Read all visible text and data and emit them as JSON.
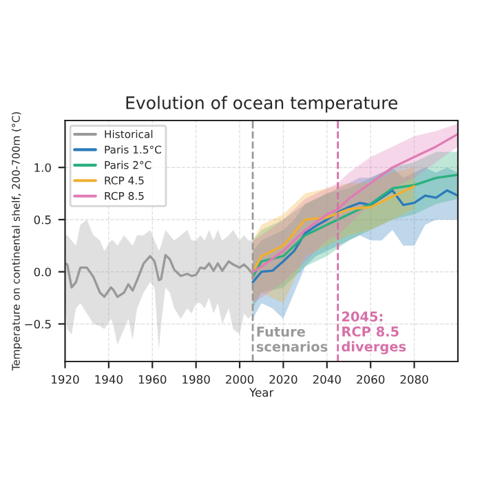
{
  "chart_data": {
    "type": "line",
    "title": "Evolution of ocean temperature",
    "xlabel": "Year",
    "ylabel": "Temperature on continental shelf, 200-700m (°C)",
    "xlim": [
      1920,
      2100
    ],
    "ylim": [
      -0.86,
      1.45
    ],
    "xticks": [
      1920,
      1940,
      1960,
      1980,
      2000,
      2020,
      2040,
      2060,
      2080
    ],
    "yticks": [
      {
        "value": -0.5,
        "label": "−0.5"
      },
      {
        "value": 0.0,
        "label": "0.0"
      },
      {
        "value": 0.5,
        "label": "0.5"
      },
      {
        "value": 1.0,
        "label": "1.0"
      }
    ],
    "grid": true,
    "legend": "top left",
    "line_style": "solid",
    "marker": "none",
    "ref_lines": [
      {
        "axis": "x",
        "value": 2006,
        "label": "Future\nscenarios",
        "color": "#999999",
        "line_style": "dashed"
      },
      {
        "axis": "x",
        "value": 2045,
        "label": "2045:\nRCP 8.5\ndiverges",
        "color": "#d670a8",
        "line_style": "dashed"
      }
    ],
    "series": [
      {
        "name": "Historical",
        "color": "#999999",
        "x": [
          1920,
          1921,
          1923,
          1925,
          1927,
          1930,
          1933,
          1936,
          1938,
          1941,
          1942,
          1944,
          1947,
          1949,
          1951,
          1953,
          1956,
          1959,
          1961,
          1963,
          1964,
          1966,
          1968,
          1970,
          1973,
          1976,
          1978,
          1980,
          1982,
          1984,
          1986,
          1988,
          1990,
          1992,
          1995,
          1997,
          2000,
          2002,
          2004,
          2006
        ],
        "values": [
          0.08,
          0.07,
          -0.15,
          -0.1,
          0.04,
          0.04,
          -0.05,
          -0.2,
          -0.24,
          -0.15,
          -0.17,
          -0.24,
          -0.2,
          -0.12,
          -0.18,
          -0.08,
          0.08,
          0.15,
          0.1,
          -0.08,
          -0.07,
          0.16,
          0.12,
          0.02,
          -0.04,
          -0.02,
          -0.04,
          -0.03,
          0.04,
          0.03,
          0.08,
          0.01,
          0.08,
          0.01,
          0.1,
          0.07,
          0.04,
          0.07,
          0.03,
          -0.02
        ],
        "lower": [
          -0.3,
          -0.55,
          -0.6,
          -0.35,
          -0.3,
          -0.4,
          -0.5,
          -0.52,
          -0.55,
          -0.45,
          -0.5,
          -0.7,
          -0.55,
          -0.45,
          -0.65,
          -0.35,
          -0.2,
          -0.1,
          -0.15,
          -0.75,
          -0.5,
          -0.15,
          -0.2,
          -0.35,
          -0.45,
          -0.35,
          -0.4,
          -0.3,
          -0.3,
          -0.35,
          -0.25,
          -0.4,
          -0.3,
          -0.5,
          -0.35,
          -0.55,
          -0.6,
          -0.4,
          -0.45,
          -0.4
        ],
        "upper": [
          0.35,
          0.35,
          0.3,
          0.25,
          0.45,
          0.5,
          0.35,
          0.3,
          0.2,
          0.3,
          0.3,
          0.25,
          0.35,
          0.3,
          0.25,
          0.35,
          0.35,
          0.4,
          0.3,
          0.2,
          0.25,
          0.4,
          0.35,
          0.3,
          0.35,
          0.4,
          0.3,
          0.3,
          0.35,
          0.3,
          0.4,
          0.3,
          0.4,
          0.3,
          0.35,
          0.4,
          0.3,
          0.35,
          0.3,
          0.3
        ]
      },
      {
        "name": "Paris 1.5°C",
        "color": "#2b7bba",
        "x": [
          2006,
          2010,
          2015,
          2020,
          2025,
          2030,
          2035,
          2040,
          2045,
          2050,
          2055,
          2060,
          2065,
          2070,
          2075,
          2080,
          2085,
          2090,
          2095,
          2100
        ],
        "values": [
          -0.1,
          0.0,
          0.01,
          0.1,
          0.2,
          0.37,
          0.44,
          0.5,
          0.57,
          0.62,
          0.66,
          0.64,
          0.71,
          0.78,
          0.64,
          0.66,
          0.73,
          0.71,
          0.78,
          0.73
        ],
        "lower": [
          -0.45,
          -0.3,
          -0.35,
          -0.45,
          -0.2,
          0.05,
          0.15,
          0.2,
          0.25,
          0.3,
          0.35,
          0.3,
          0.3,
          0.4,
          0.25,
          0.25,
          0.45,
          0.5,
          0.5,
          0.5
        ],
        "upper": [
          0.2,
          0.3,
          0.35,
          0.4,
          0.5,
          0.65,
          0.7,
          0.75,
          0.8,
          0.85,
          0.9,
          0.9,
          0.95,
          1.0,
          0.9,
          0.95,
          1.0,
          0.95,
          1.0,
          0.95
        ]
      },
      {
        "name": "Paris 2°C",
        "color": "#2ab07f",
        "x": [
          2006,
          2010,
          2020,
          2030,
          2040,
          2050,
          2060,
          2070,
          2080,
          2090,
          2100
        ],
        "values": [
          -0.05,
          0.1,
          0.15,
          0.35,
          0.45,
          0.55,
          0.65,
          0.8,
          0.83,
          0.9,
          0.93
        ],
        "lower": [
          -0.35,
          -0.2,
          -0.15,
          0.05,
          0.15,
          0.3,
          0.4,
          0.5,
          0.55,
          0.65,
          0.7
        ],
        "upper": [
          0.3,
          0.4,
          0.5,
          0.65,
          0.75,
          0.8,
          0.9,
          1.0,
          1.05,
          1.15,
          1.15
        ]
      },
      {
        "name": "RCP 4.5",
        "color": "#f0b030",
        "x": [
          2006,
          2010,
          2020,
          2030,
          2040,
          2050,
          2060,
          2070,
          2080
        ],
        "values": [
          0.0,
          0.15,
          0.25,
          0.5,
          0.52,
          0.6,
          0.62,
          0.72,
          0.82
        ],
        "lower": [
          -0.3,
          -0.2,
          -0.3,
          0.15,
          0.25,
          0.35,
          0.4,
          0.5,
          0.6
        ],
        "upper": [
          0.3,
          0.45,
          0.55,
          0.75,
          0.8,
          0.85,
          0.85,
          0.95,
          1.0
        ]
      },
      {
        "name": "RCP 8.5",
        "color": "#e07bb5",
        "x": [
          2006,
          2010,
          2020,
          2030,
          2040,
          2045,
          2050,
          2060,
          2070,
          2080,
          2090,
          2100
        ],
        "values": [
          0.0,
          0.05,
          0.2,
          0.4,
          0.55,
          0.6,
          0.7,
          0.85,
          1.0,
          1.1,
          1.2,
          1.32
        ],
        "lower": [
          -0.3,
          -0.25,
          -0.1,
          0.1,
          0.3,
          0.35,
          0.45,
          0.65,
          0.8,
          0.9,
          1.05,
          1.2
        ],
        "upper": [
          0.3,
          0.35,
          0.5,
          0.7,
          0.8,
          0.85,
          0.95,
          1.1,
          1.2,
          1.3,
          1.35,
          1.42
        ]
      }
    ]
  }
}
